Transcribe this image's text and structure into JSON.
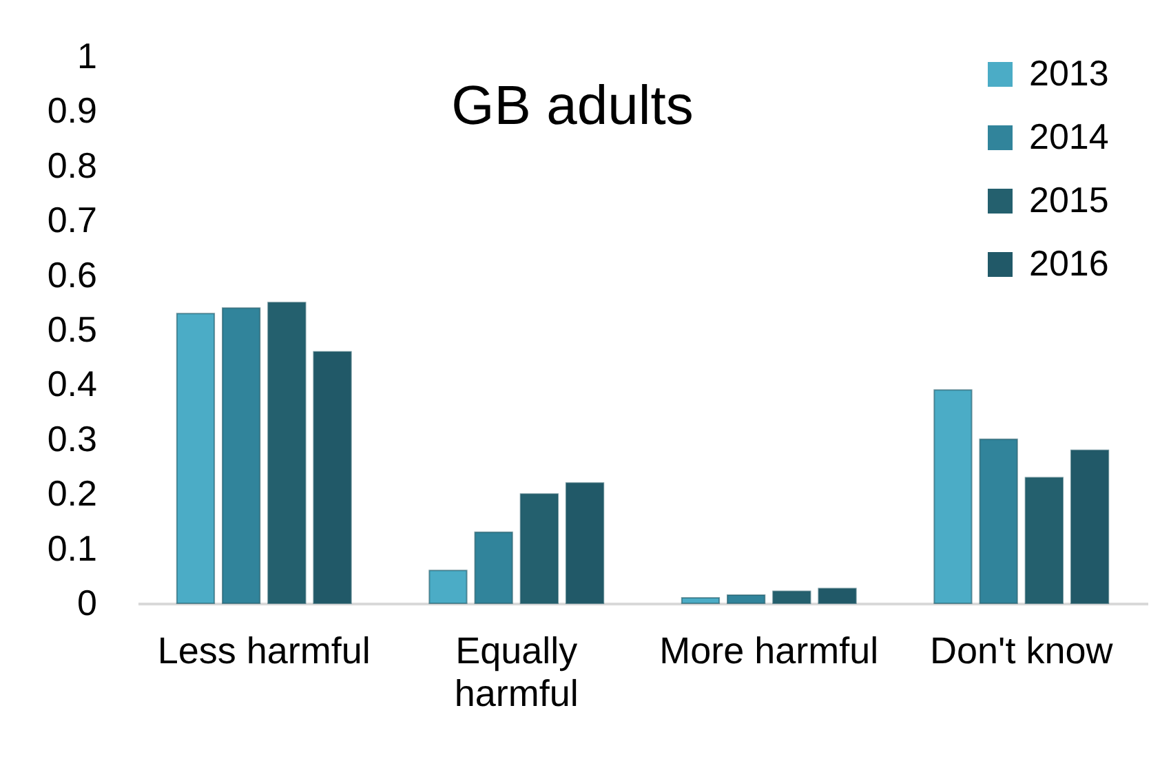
{
  "chart_data": {
    "type": "bar",
    "title": "GB adults",
    "categories": [
      "Less harmful",
      "Equally harmful",
      "More harmful",
      "Don't know"
    ],
    "series": [
      {
        "name": "2013",
        "color": "#4bacc6",
        "values": [
          0.53,
          0.06,
          0.01,
          0.39
        ]
      },
      {
        "name": "2014",
        "color": "#31849b",
        "values": [
          0.54,
          0.13,
          0.015,
          0.3
        ]
      },
      {
        "name": "2015",
        "color": "#24606e",
        "values": [
          0.55,
          0.2,
          0.022,
          0.23
        ]
      },
      {
        "name": "2016",
        "color": "#215968",
        "values": [
          0.46,
          0.22,
          0.027,
          0.28
        ]
      }
    ],
    "ylim": [
      0,
      1
    ],
    "yticks": [
      0,
      0.1,
      0.2,
      0.3,
      0.4,
      0.5,
      0.6,
      0.7,
      0.8,
      0.9,
      1
    ],
    "grid": false,
    "legend": "top right"
  }
}
